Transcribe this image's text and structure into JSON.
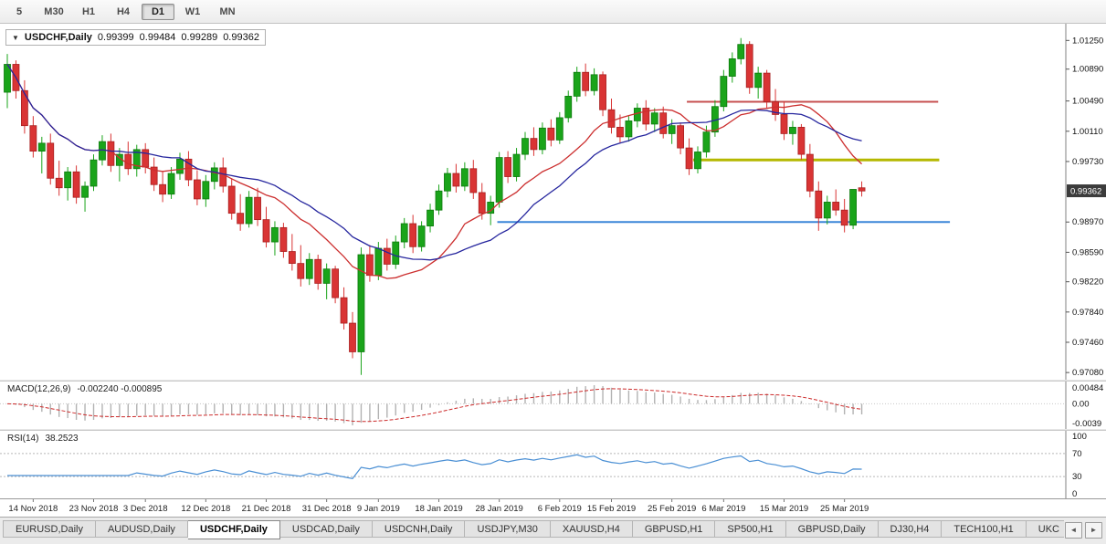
{
  "toolbar": {
    "timeframes": [
      {
        "label": "5",
        "active": false
      },
      {
        "label": "M30",
        "active": false
      },
      {
        "label": "H1",
        "active": false
      },
      {
        "label": "H4",
        "active": false
      },
      {
        "label": "D1",
        "active": true
      },
      {
        "label": "W1",
        "active": false
      },
      {
        "label": "MN",
        "active": false
      }
    ]
  },
  "chart_header": {
    "dropdown_icon": "▼",
    "symbol_label": "USDCHF,Daily",
    "open": "0.99399",
    "high": "0.99484",
    "low": "0.99289",
    "close": "0.99362"
  },
  "chart_data": {
    "type": "candlestick",
    "symbol": "USDCHF",
    "timeframe": "Daily",
    "title": "USDCHF,Daily 0.99399 0.99484 0.99289 0.99362",
    "y_axis": {
      "min": 0.9699,
      "max": 1.0146,
      "labels": [
        "1.01250",
        "1.00890",
        "1.00490",
        "1.00110",
        "0.99730",
        "0.98970",
        "0.98590",
        "0.98220",
        "0.97840",
        "0.97460",
        "0.97080"
      ]
    },
    "current_price": 0.99362,
    "current_price_label": "0.99362",
    "candles": [
      [
        1.006,
        1.0108,
        1.004,
        1.0095
      ],
      [
        1.0095,
        1.01,
        1.0052,
        1.0062
      ],
      [
        1.0062,
        1.0075,
        1.0008,
        1.0018
      ],
      [
        1.0018,
        1.003,
        0.9978,
        0.9986
      ],
      [
        0.9986,
        1.0004,
        0.9958,
        0.9996
      ],
      [
        0.9996,
        1.0008,
        0.9944,
        0.9952
      ],
      [
        0.9952,
        0.9974,
        0.993,
        0.994
      ],
      [
        0.994,
        0.9966,
        0.9924,
        0.996
      ],
      [
        0.996,
        0.9968,
        0.992,
        0.9928
      ],
      [
        0.9928,
        0.9948,
        0.991,
        0.9942
      ],
      [
        0.9942,
        0.9982,
        0.9936,
        0.9975
      ],
      [
        0.9975,
        1.0006,
        0.9968,
        0.9998
      ],
      [
        0.9998,
        1.0008,
        0.996,
        0.9968
      ],
      [
        0.9968,
        0.999,
        0.9948,
        0.9982
      ],
      [
        0.9982,
        0.9998,
        0.9956,
        0.9964
      ],
      [
        0.9964,
        0.9994,
        0.9954,
        0.9988
      ],
      [
        0.9988,
        0.9996,
        0.9958,
        0.9966
      ],
      [
        0.9966,
        0.9978,
        0.9936,
        0.9944
      ],
      [
        0.9944,
        0.996,
        0.9922,
        0.9932
      ],
      [
        0.9932,
        0.9966,
        0.9926,
        0.9958
      ],
      [
        0.9958,
        0.9984,
        0.995,
        0.9976
      ],
      [
        0.9976,
        0.9986,
        0.9942,
        0.995
      ],
      [
        0.995,
        0.9962,
        0.9918,
        0.9926
      ],
      [
        0.9926,
        0.9956,
        0.9916,
        0.9948
      ],
      [
        0.9948,
        0.9972,
        0.9938,
        0.9965
      ],
      [
        0.9965,
        0.9978,
        0.9934,
        0.9942
      ],
      [
        0.9942,
        0.9952,
        0.99,
        0.9908
      ],
      [
        0.9908,
        0.9932,
        0.9886,
        0.9895
      ],
      [
        0.9895,
        0.9936,
        0.989,
        0.9928
      ],
      [
        0.9928,
        0.994,
        0.9892,
        0.99
      ],
      [
        0.99,
        0.9916,
        0.9865,
        0.9872
      ],
      [
        0.9872,
        0.9898,
        0.9855,
        0.989
      ],
      [
        0.989,
        0.9896,
        0.9852,
        0.986
      ],
      [
        0.986,
        0.9882,
        0.9836,
        0.9845
      ],
      [
        0.9845,
        0.9868,
        0.9816,
        0.9826
      ],
      [
        0.9826,
        0.9858,
        0.9818,
        0.985
      ],
      [
        0.985,
        0.9856,
        0.9812,
        0.982
      ],
      [
        0.982,
        0.9845,
        0.98,
        0.9838
      ],
      [
        0.9838,
        0.9842,
        0.9795,
        0.9802
      ],
      [
        0.9802,
        0.9815,
        0.9762,
        0.977
      ],
      [
        0.977,
        0.9784,
        0.9726,
        0.9734
      ],
      [
        0.9734,
        0.9865,
        0.9705,
        0.9856
      ],
      [
        0.9856,
        0.9868,
        0.9822,
        0.983
      ],
      [
        0.983,
        0.9872,
        0.9824,
        0.9864
      ],
      [
        0.9864,
        0.9876,
        0.9836,
        0.9844
      ],
      [
        0.9844,
        0.988,
        0.9838,
        0.9872
      ],
      [
        0.9872,
        0.9902,
        0.9864,
        0.9895
      ],
      [
        0.9895,
        0.9906,
        0.9858,
        0.9866
      ],
      [
        0.9866,
        0.9898,
        0.986,
        0.9892
      ],
      [
        0.9892,
        0.992,
        0.9884,
        0.9912
      ],
      [
        0.9912,
        0.9944,
        0.9906,
        0.9936
      ],
      [
        0.9936,
        0.9965,
        0.9928,
        0.9958
      ],
      [
        0.9958,
        0.997,
        0.9934,
        0.9942
      ],
      [
        0.9942,
        0.9972,
        0.9936,
        0.9964
      ],
      [
        0.9964,
        0.9975,
        0.9926,
        0.9934
      ],
      [
        0.9934,
        0.9946,
        0.99,
        0.9908
      ],
      [
        0.9908,
        0.993,
        0.9893,
        0.9922
      ],
      [
        0.9922,
        0.9985,
        0.9915,
        0.9978
      ],
      [
        0.9978,
        0.9986,
        0.9946,
        0.9954
      ],
      [
        0.9954,
        0.999,
        0.9948,
        0.9982
      ],
      [
        0.9982,
        1.001,
        0.9975,
        1.0002
      ],
      [
        1.0002,
        1.0016,
        0.998,
        0.9988
      ],
      [
        0.9988,
        1.0022,
        0.9982,
        1.0015
      ],
      [
        1.0015,
        1.0026,
        0.9992,
        1.0
      ],
      [
        1.0,
        1.0035,
        0.9995,
        1.0028
      ],
      [
        1.0028,
        1.0062,
        1.0022,
        1.0055
      ],
      [
        1.0055,
        1.0092,
        1.0048,
        1.0085
      ],
      [
        1.0085,
        1.0096,
        1.0055,
        1.0062
      ],
      [
        1.0062,
        1.009,
        1.0056,
        1.0082
      ],
      [
        1.0082,
        1.0086,
        1.003,
        1.0038
      ],
      [
        1.0038,
        1.0052,
        1.0008,
        1.0016
      ],
      [
        1.0016,
        1.0032,
        0.9996,
        1.0004
      ],
      [
        1.0004,
        1.003,
        0.9998,
        1.0024
      ],
      [
        1.0024,
        1.0046,
        1.0016,
        1.004
      ],
      [
        1.004,
        1.005,
        1.0012,
        1.002
      ],
      [
        1.002,
        1.004,
        1.001,
        1.0034
      ],
      [
        1.0034,
        1.0042,
        1.0002,
        1.0008
      ],
      [
        1.0008,
        1.0026,
        0.9995,
        1.0018
      ],
      [
        1.0018,
        1.0022,
        0.9982,
        0.999
      ],
      [
        0.999,
        1.0002,
        0.9956,
        0.9964
      ],
      [
        0.9964,
        0.9992,
        0.9958,
        0.9985
      ],
      [
        0.9985,
        1.0018,
        0.9978,
        1.001
      ],
      [
        1.001,
        1.005,
        1.0004,
        1.0042
      ],
      [
        1.0042,
        1.0088,
        1.0036,
        1.008
      ],
      [
        1.008,
        1.011,
        1.0072,
        1.0102
      ],
      [
        1.0102,
        1.0128,
        1.0095,
        1.012
      ],
      [
        1.012,
        1.0124,
        1.0058,
        1.0066
      ],
      [
        1.0066,
        1.0092,
        1.0052,
        1.0084
      ],
      [
        1.0084,
        1.0088,
        1.004,
        1.0048
      ],
      [
        1.0048,
        1.0064,
        1.0024,
        1.0032
      ],
      [
        1.0032,
        1.0048,
        1.0,
        1.0008
      ],
      [
        1.0008,
        1.0024,
        0.9994,
        1.0016
      ],
      [
        1.0016,
        1.002,
        0.9975,
        0.9982
      ],
      [
        0.9982,
        0.9995,
        0.9928,
        0.9936
      ],
      [
        0.9936,
        0.9948,
        0.9886,
        0.9902
      ],
      [
        0.9902,
        0.993,
        0.9894,
        0.9922
      ],
      [
        0.9922,
        0.9938,
        0.9905,
        0.9912
      ],
      [
        0.9912,
        0.9926,
        0.9884,
        0.9893
      ],
      [
        0.9893,
        0.993,
        0.9888,
        0.9938
      ],
      [
        0.994,
        0.9948,
        0.9929,
        0.9936
      ]
    ],
    "x_axis_dates": [
      {
        "label": "14 Nov 2018",
        "i": 3
      },
      {
        "label": "23 Nov 2018",
        "i": 10
      },
      {
        "label": "3 Dec 2018",
        "i": 16
      },
      {
        "label": "12 Dec 2018",
        "i": 23
      },
      {
        "label": "21 Dec 2018",
        "i": 30
      },
      {
        "label": "31 Dec 2018",
        "i": 37
      },
      {
        "label": "9 Jan 2019",
        "i": 43
      },
      {
        "label": "18 Jan 2019",
        "i": 50
      },
      {
        "label": "28 Jan 2019",
        "i": 57
      },
      {
        "label": "6 Feb 2019",
        "i": 64
      },
      {
        "label": "15 Feb 2019",
        "i": 70
      },
      {
        "label": "25 Feb 2019",
        "i": 77
      },
      {
        "label": "6 Mar 2019",
        "i": 83
      },
      {
        "label": "15 Mar 2019",
        "i": 90
      },
      {
        "label": "25 Mar 2019",
        "i": 97
      }
    ],
    "hlines": [
      {
        "name": "resistance-line",
        "price": 1.0048,
        "color": "#c75050",
        "width": 2,
        "from": 0.645,
        "to": 0.881
      },
      {
        "name": "mid-level-line",
        "price": 0.9975,
        "color": "#b5b800",
        "width": 3,
        "from": 0.651,
        "to": 0.882
      },
      {
        "name": "support-line",
        "price": 0.9897,
        "color": "#3b86d8",
        "width": 2,
        "from": 0.467,
        "to": 0.892
      }
    ],
    "moving_averages": [
      {
        "name": "ma-fast",
        "period": 13,
        "color": "#cc2f2f"
      },
      {
        "name": "ma-slow",
        "period": 21,
        "color": "#26269e"
      }
    ],
    "macd": {
      "title": "MACD(12,26,9)",
      "current": "-0.002240 -0.000895",
      "fast": 12,
      "slow": 26,
      "signal": 9,
      "hist_color": "#b2b2b2",
      "signal_color": "#cc2a2a",
      "axis_labels": [
        "0.00484",
        "0.00",
        "-0.0039"
      ]
    },
    "rsi": {
      "title": "RSI(14)",
      "current": "38.2523",
      "period": 14,
      "color": "#4a8fd4",
      "levels": [
        70,
        30
      ],
      "axis_labels": [
        "100",
        "70",
        "30",
        "0"
      ]
    },
    "colors": {
      "bull": "#1aa41a",
      "bear": "#d93434",
      "bull_border": "#0c7a0c",
      "bear_border": "#a82020",
      "badge_bg": "#3c3c3c",
      "badge_text": "#ffffff",
      "axis_text": "#111111"
    }
  },
  "tab_bar": {
    "active_index": 2,
    "scroll_left": "◄",
    "scroll_right": "►",
    "tabs": [
      {
        "label": "EURUSD,Daily"
      },
      {
        "label": "AUDUSD,Daily"
      },
      {
        "label": "USDCHF,Daily"
      },
      {
        "label": "USDCAD,Daily"
      },
      {
        "label": "USDCNH,Daily"
      },
      {
        "label": "USDJPY,M30"
      },
      {
        "label": "XAUUSD,H4"
      },
      {
        "label": "GBPUSD,H1"
      },
      {
        "label": "SP500,H1"
      },
      {
        "label": "GBPUSD,Daily"
      },
      {
        "label": "DJ30,H4"
      },
      {
        "label": "TECH100,H1"
      },
      {
        "label": "UKC"
      }
    ]
  }
}
